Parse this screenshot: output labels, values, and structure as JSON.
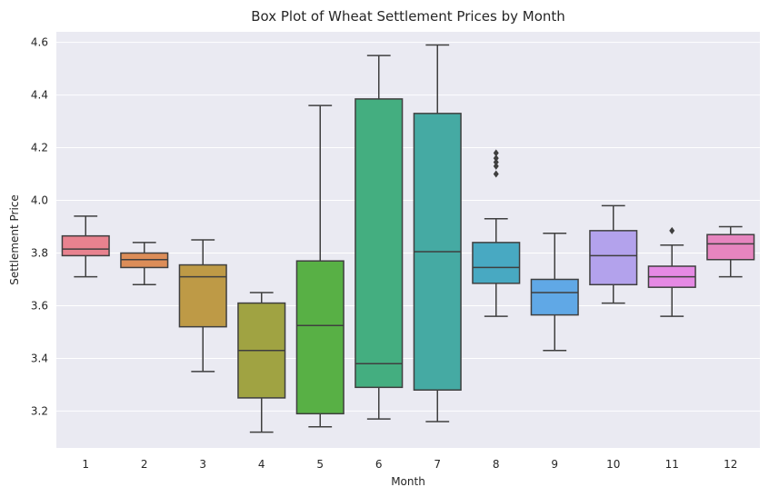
{
  "chart_data": {
    "type": "box",
    "title": "Box Plot of Wheat Settlement Prices by Month",
    "xlabel": "Month",
    "ylabel": "Settlement Price",
    "ylim": [
      3.06,
      4.64
    ],
    "yticks": [
      3.2,
      3.4,
      3.6,
      3.8,
      4.0,
      4.2,
      4.4,
      4.6
    ],
    "ytick_labels": [
      "3.2",
      "3.4",
      "3.6",
      "3.8",
      "4.0",
      "4.2",
      "4.4",
      "4.6"
    ],
    "grid": true,
    "categories": [
      "1",
      "2",
      "3",
      "4",
      "5",
      "6",
      "7",
      "8",
      "9",
      "10",
      "11",
      "12"
    ],
    "boxes": [
      {
        "month": "1",
        "whisker_low": 3.71,
        "q1": 3.79,
        "median": 3.815,
        "q3": 3.865,
        "whisker_high": 3.94,
        "outliers": [],
        "color": "#e8828f"
      },
      {
        "month": "2",
        "whisker_low": 3.68,
        "q1": 3.745,
        "median": 3.775,
        "q3": 3.8,
        "whisker_high": 3.84,
        "outliers": [],
        "color": "#dc8d58"
      },
      {
        "month": "3",
        "whisker_low": 3.35,
        "q1": 3.52,
        "median": 3.71,
        "q3": 3.755,
        "whisker_high": 3.85,
        "outliers": [],
        "color": "#be9a46"
      },
      {
        "month": "4",
        "whisker_low": 3.12,
        "q1": 3.25,
        "median": 3.43,
        "q3": 3.61,
        "whisker_high": 3.65,
        "outliers": [],
        "color": "#a0a342"
      },
      {
        "month": "5",
        "whisker_low": 3.14,
        "q1": 3.19,
        "median": 3.525,
        "q3": 3.77,
        "whisker_high": 4.36,
        "outliers": [],
        "color": "#58b045"
      },
      {
        "month": "6",
        "whisker_low": 3.17,
        "q1": 3.29,
        "median": 3.38,
        "q3": 4.385,
        "whisker_high": 4.55,
        "outliers": [],
        "color": "#44ae80"
      },
      {
        "month": "7",
        "whisker_low": 3.16,
        "q1": 3.28,
        "median": 3.805,
        "q3": 4.33,
        "whisker_high": 4.59,
        "outliers": [],
        "color": "#45aaa3"
      },
      {
        "month": "8",
        "whisker_low": 3.56,
        "q1": 3.685,
        "median": 3.745,
        "q3": 3.84,
        "whisker_high": 3.93,
        "outliers": [
          4.1,
          4.13,
          4.145,
          4.16,
          4.18
        ],
        "color": "#48a9c2"
      },
      {
        "month": "9",
        "whisker_low": 3.43,
        "q1": 3.565,
        "median": 3.65,
        "q3": 3.7,
        "whisker_high": 3.875,
        "outliers": [],
        "color": "#60a8e6"
      },
      {
        "month": "10",
        "whisker_low": 3.61,
        "q1": 3.68,
        "median": 3.79,
        "q3": 3.885,
        "whisker_high": 3.98,
        "outliers": [],
        "color": "#b3a2ec"
      },
      {
        "month": "11",
        "whisker_low": 3.56,
        "q1": 3.67,
        "median": 3.71,
        "q3": 3.75,
        "whisker_high": 3.83,
        "outliers": [
          3.885
        ],
        "color": "#e589e4"
      },
      {
        "month": "12",
        "whisker_low": 3.71,
        "q1": 3.775,
        "median": 3.835,
        "q3": 3.87,
        "whisker_high": 3.9,
        "outliers": [],
        "color": "#e685bf"
      }
    ]
  }
}
